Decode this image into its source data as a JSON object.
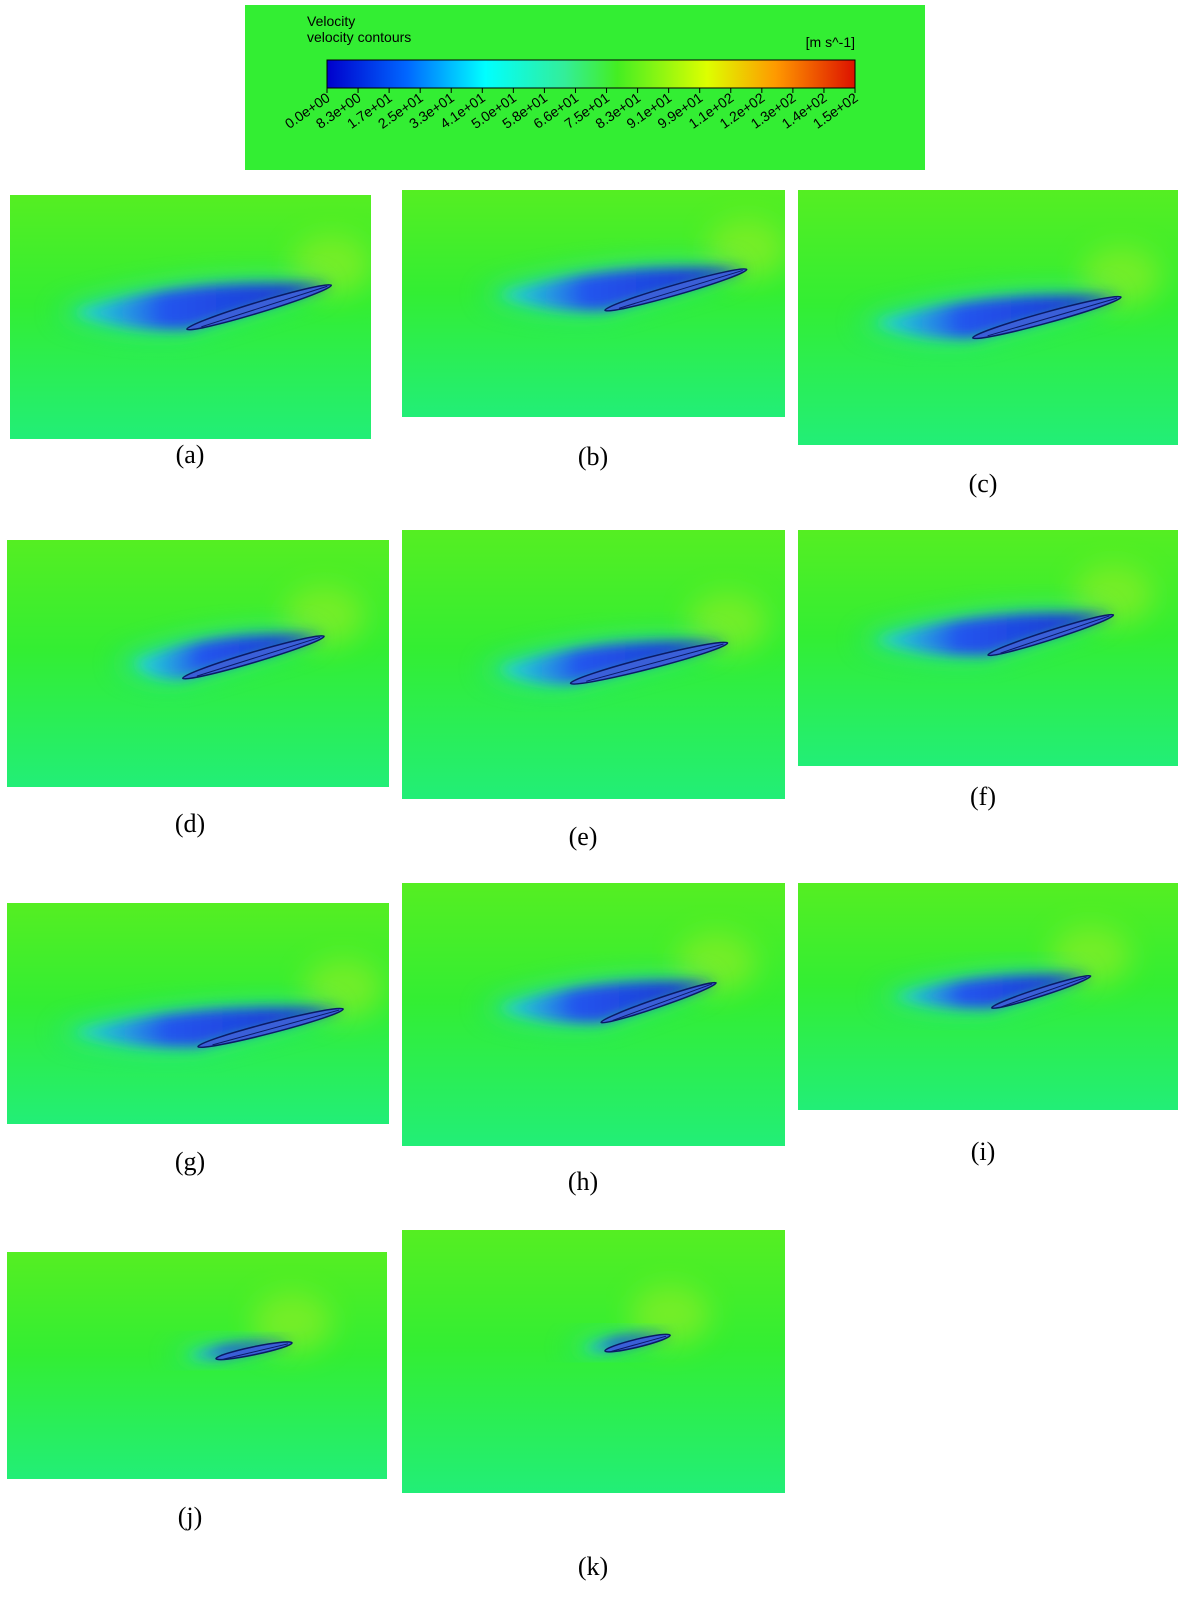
{
  "legend": {
    "title": "Velocity",
    "subtitle": "velocity contours",
    "unit": "[m s^-1]",
    "ticks": [
      "0.0e+00",
      "8.3e+00",
      "1.7e+01",
      "2.5e+01",
      "3.3e+01",
      "4.1e+01",
      "5.0e+01",
      "5.8e+01",
      "6.6e+01",
      "7.5e+01",
      "8.3e+01",
      "9.1e+01",
      "9.9e+01",
      "1.1e+02",
      "1.2e+02",
      "1.3e+02",
      "1.4e+02",
      "1.5e+02"
    ]
  },
  "panels": [
    {
      "label": "(a)"
    },
    {
      "label": "(b)"
    },
    {
      "label": "(c)"
    },
    {
      "label": "(d)"
    },
    {
      "label": "(e)"
    },
    {
      "label": "(f)"
    },
    {
      "label": "(g)"
    },
    {
      "label": "(h)"
    },
    {
      "label": "(i)"
    },
    {
      "label": "(j)"
    },
    {
      "label": "(k)"
    }
  ]
}
